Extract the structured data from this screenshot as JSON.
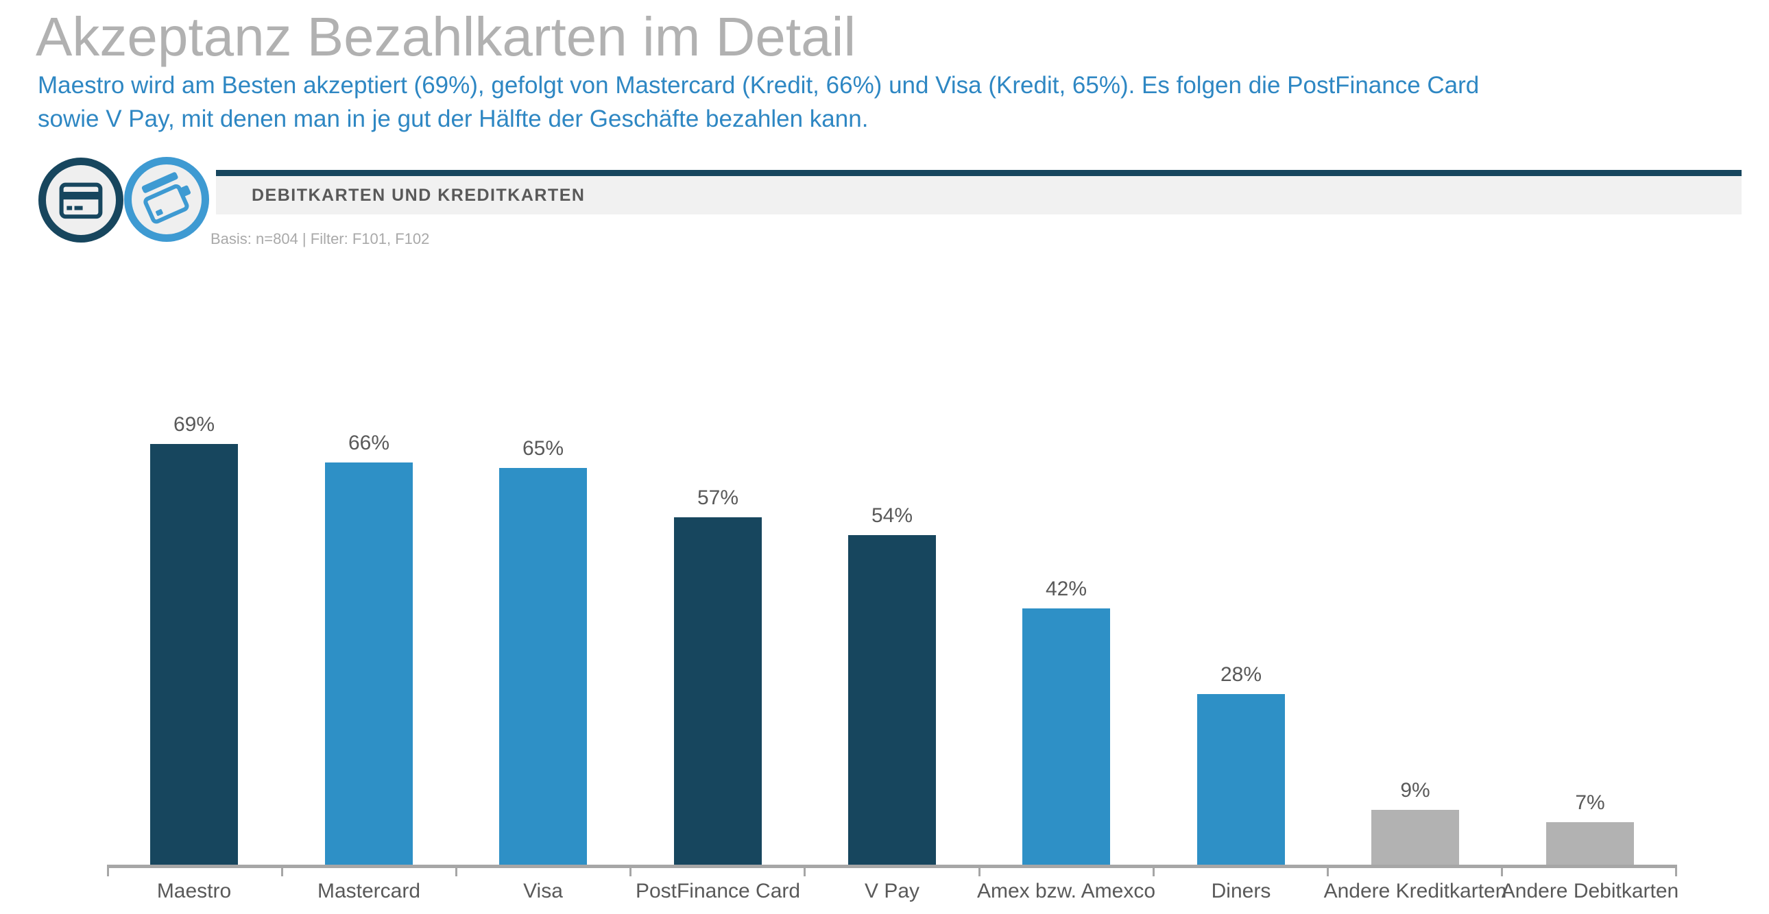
{
  "page": {
    "title": "Akzeptanz Bezahlkarten im Detail",
    "subtitle_line1": "Maestro wird am Besten akzeptiert (69%), gefolgt von Mastercard (Kredit, 66%) und  Visa (Kredit, 65%). Es folgen die PostFinance Card",
    "subtitle_line2": "sowie V Pay, mit denen man in je gut der Hälfte der Geschäfte bezahlen kann.",
    "title_color": "#B1B1B1",
    "subtitle_color": "#2E87C3"
  },
  "section": {
    "label": "DEBITKARTEN UND KREDITKARTEN",
    "basis": "Basis: n=804 | Filter: F101, F102",
    "accent_color": "#17465E",
    "bar_background": "#F1F1F1",
    "icons": [
      "debit-card-icon",
      "credit-cards-icon"
    ],
    "icon_colors": [
      "#17465E",
      "#3E9AD2"
    ]
  },
  "chart_data": {
    "type": "bar",
    "title": "",
    "xlabel": "",
    "ylabel": "",
    "categories": [
      "Maestro",
      "Mastercard",
      "Visa",
      "PostFinance Card",
      "V Pay",
      "Amex bzw. Amexco",
      "Diners",
      "Andere Kreditkarten",
      "Andere Debitkarten"
    ],
    "values": [
      69,
      66,
      65,
      57,
      54,
      42,
      28,
      9,
      7
    ],
    "value_labels": [
      "69%",
      "66%",
      "65%",
      "57%",
      "54%",
      "42%",
      "28%",
      "9%",
      "7%"
    ],
    "bar_colors": [
      "#17465E",
      "#2E90C6",
      "#2E90C6",
      "#17465E",
      "#17465E",
      "#2E90C6",
      "#2E90C6",
      "#B2B2B2",
      "#B2B2B2"
    ],
    "ylim": [
      0,
      74
    ],
    "gridlines": false,
    "legend": "none",
    "axis_color": "#A6A6A6",
    "label_color": "#595959"
  }
}
